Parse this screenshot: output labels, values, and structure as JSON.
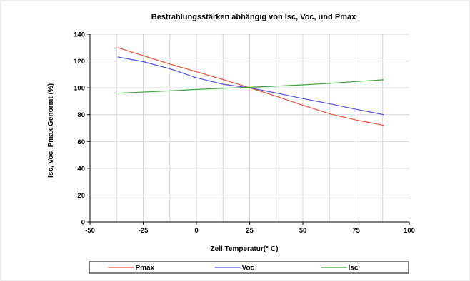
{
  "chart_data": {
    "type": "line",
    "title": "Bestrahlungsstärken abhängig von Isc, Voc, und Pmax",
    "xlabel": "Zell Temperatur(° C)",
    "ylabel": "Isc, Voc, Pmax Genormt (%)",
    "xlim": [
      -50,
      100
    ],
    "ylim": [
      0,
      140
    ],
    "xticks": [
      -50,
      -25,
      0,
      25,
      50,
      75,
      100
    ],
    "yticks": [
      0,
      20,
      40,
      60,
      80,
      100,
      120,
      140
    ],
    "xtick_labels": [
      "-50",
      "-25",
      "0",
      "25",
      "50",
      "75",
      "100"
    ],
    "ytick_labels": [
      "0",
      "20",
      "40",
      "60",
      "80",
      "100",
      "120",
      "140"
    ],
    "grid": true,
    "legend_position": "bottom",
    "series": [
      {
        "name": "Pmax",
        "color": "#e8503a",
        "points": [
          [
            -37,
            130
          ],
          [
            -12,
            117.5
          ],
          [
            0,
            112
          ],
          [
            13,
            106
          ],
          [
            25,
            100
          ],
          [
            38,
            93.5
          ],
          [
            50,
            87
          ],
          [
            63,
            80.5
          ],
          [
            75,
            76
          ],
          [
            88,
            72
          ]
        ]
      },
      {
        "name": "Voc",
        "color": "#4f4fe0",
        "points": [
          [
            -37,
            123
          ],
          [
            -25,
            119.5
          ],
          [
            -12,
            114
          ],
          [
            0,
            107.5
          ],
          [
            13,
            102.5
          ],
          [
            25,
            100
          ],
          [
            38,
            96
          ],
          [
            50,
            92
          ],
          [
            63,
            88
          ],
          [
            75,
            84
          ],
          [
            88,
            80
          ]
        ]
      },
      {
        "name": "Isc",
        "color": "#3aa63a",
        "points": [
          [
            -37,
            96
          ],
          [
            -12,
            97.8
          ],
          [
            0,
            98.8
          ],
          [
            13,
            99.7
          ],
          [
            25,
            100.4
          ],
          [
            38,
            101.3
          ],
          [
            50,
            102.2
          ],
          [
            63,
            103.4
          ],
          [
            75,
            104.7
          ],
          [
            88,
            106
          ]
        ]
      }
    ]
  },
  "colors": {
    "grid": "#d4d4d4",
    "axis": "#000000",
    "frame": "#d0d0d0"
  }
}
